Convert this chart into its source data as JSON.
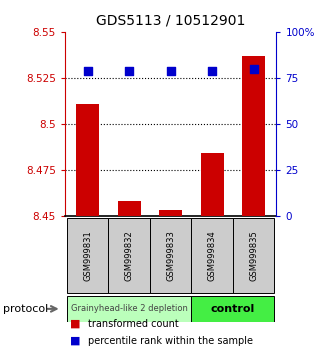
{
  "title": "GDS5113 / 10512901",
  "samples": [
    "GSM999831",
    "GSM999832",
    "GSM999833",
    "GSM999834",
    "GSM999835"
  ],
  "transformed_counts": [
    8.511,
    8.458,
    8.453,
    8.484,
    8.537
  ],
  "percentile_ranks": [
    79,
    79,
    79,
    79,
    80
  ],
  "ylim_left": [
    8.45,
    8.55
  ],
  "ylim_right": [
    0,
    100
  ],
  "yticks_left": [
    8.45,
    8.475,
    8.5,
    8.525,
    8.55
  ],
  "ytick_labels_left": [
    "8.45",
    "8.475",
    "8.5",
    "8.525",
    "8.55"
  ],
  "yticks_right": [
    0,
    25,
    50,
    75,
    100
  ],
  "ytick_labels_right": [
    "0",
    "25",
    "50",
    "75",
    "100%"
  ],
  "hlines": [
    8.475,
    8.5,
    8.525
  ],
  "bar_color": "#cc0000",
  "dot_color": "#0000cc",
  "bar_bottom": 8.45,
  "group0_label": "Grainyhead-like 2 depletion",
  "group0_color": "#bbffbb",
  "group0_samples": [
    0,
    1,
    2
  ],
  "group1_label": "control",
  "group1_color": "#44ee44",
  "group1_samples": [
    3,
    4
  ],
  "protocol_label": "protocol",
  "legend_red_label": "transformed count",
  "legend_blue_label": "percentile rank within the sample",
  "bg_color": "#ffffff",
  "tick_color_left": "#cc0000",
  "tick_color_right": "#0000cc",
  "title_fontsize": 10,
  "bar_width": 0.55,
  "dot_size": 28
}
